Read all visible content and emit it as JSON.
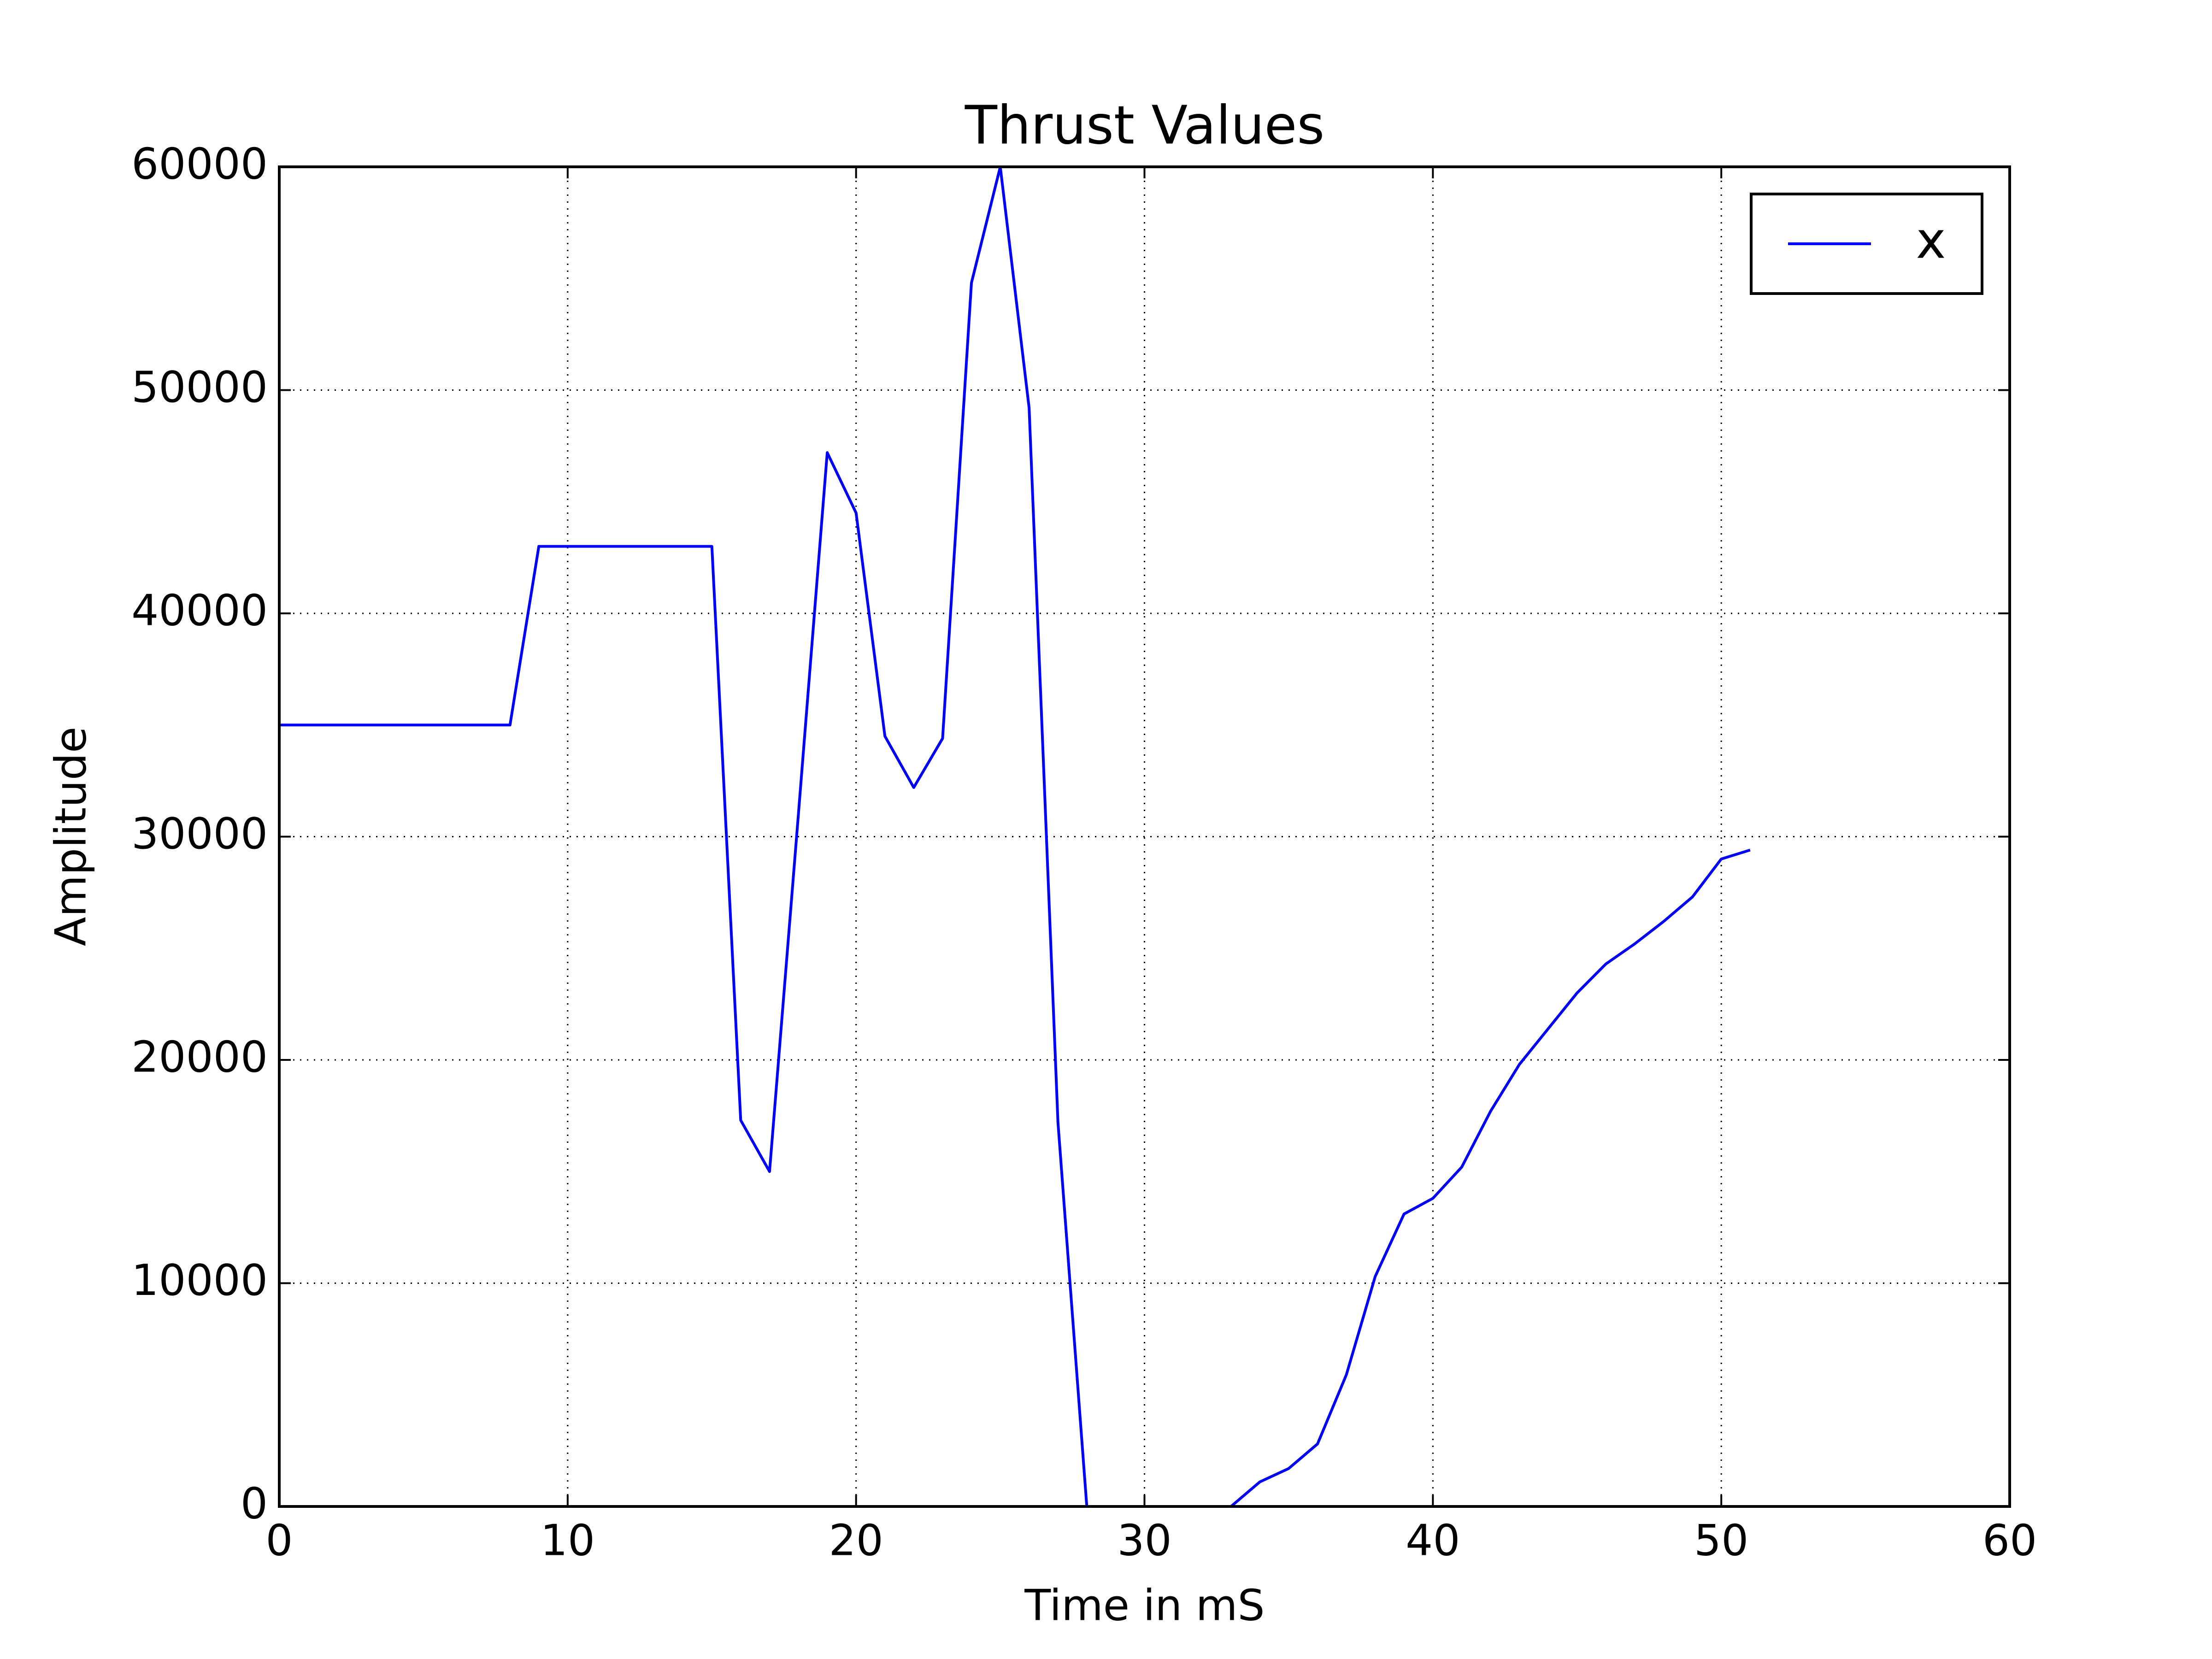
{
  "chart_data": {
    "type": "line",
    "title": "Thrust Values",
    "x_label": "Time in mS",
    "y_label": "Amplitude",
    "x": [
      0,
      1,
      2,
      3,
      4,
      5,
      6,
      7,
      8,
      9,
      10,
      11,
      12,
      13,
      14,
      15,
      16,
      17,
      18,
      19,
      20,
      21,
      22,
      23,
      24,
      25,
      26,
      27,
      28,
      29,
      30,
      31,
      32,
      33,
      34,
      35,
      36,
      37,
      38,
      39,
      40,
      41,
      42,
      43,
      44,
      45,
      46,
      47,
      48,
      49,
      50,
      51
    ],
    "series": [
      {
        "name": "x",
        "color": "#0000ff",
        "values": [
          35000,
          35000,
          35000,
          35000,
          35000,
          35000,
          35000,
          35000,
          35000,
          43000,
          43000,
          43000,
          43000,
          43000,
          43000,
          43000,
          17300,
          15000,
          31000,
          47200,
          44500,
          34500,
          32200,
          34400,
          54800,
          60000,
          49200,
          17200,
          0,
          0,
          0,
          0,
          0,
          0,
          1100,
          1700,
          2800,
          5900,
          10300,
          13100,
          13800,
          15200,
          17700,
          19800,
          21400,
          23000,
          24300,
          25200,
          26200,
          27300,
          29000,
          29400
        ]
      }
    ],
    "xlim": [
      0,
      60
    ],
    "xticks": [
      0,
      10,
      20,
      30,
      40,
      50,
      60
    ],
    "ylim": [
      0,
      60000
    ],
    "yticks": [
      0,
      10000,
      20000,
      30000,
      40000,
      50000,
      60000
    ],
    "grid": true,
    "legend": "upper right"
  }
}
